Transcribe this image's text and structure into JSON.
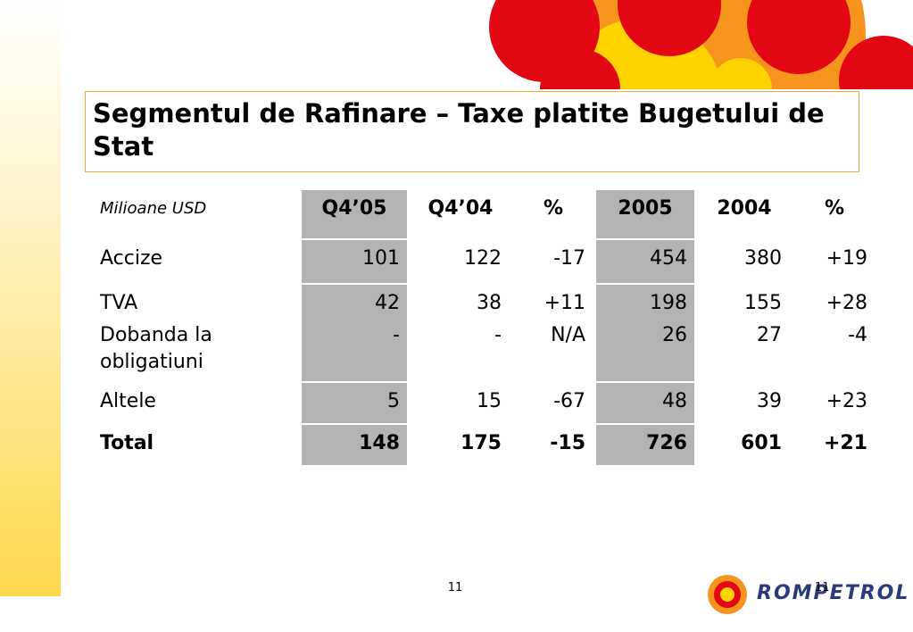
{
  "title": "Segmentul de Rafinare – Taxe platite Bugetului de Stat",
  "table": {
    "header": [
      "Milioane USD",
      "Q4’05",
      "Q4’04",
      "%",
      "2005",
      "2004",
      "%"
    ],
    "rows": [
      [
        "Accize",
        "101",
        "122",
        "-17",
        "454",
        "380",
        "+19"
      ],
      [
        "TVA",
        "42",
        "38",
        "+11",
        "198",
        "155",
        "+28"
      ],
      [
        "Dobanda la obligatiuni",
        "-",
        "-",
        "N/A",
        "26",
        "27",
        "-4"
      ],
      [
        "Altele",
        "5",
        "15",
        "-67",
        "48",
        "39",
        "+23"
      ],
      [
        "Total",
        "148",
        "175",
        "-15",
        "726",
        "601",
        "+21"
      ]
    ]
  },
  "footer": {
    "page_number": "11",
    "logo_text": "ROMPETROL",
    "logo_page_number": "11"
  }
}
